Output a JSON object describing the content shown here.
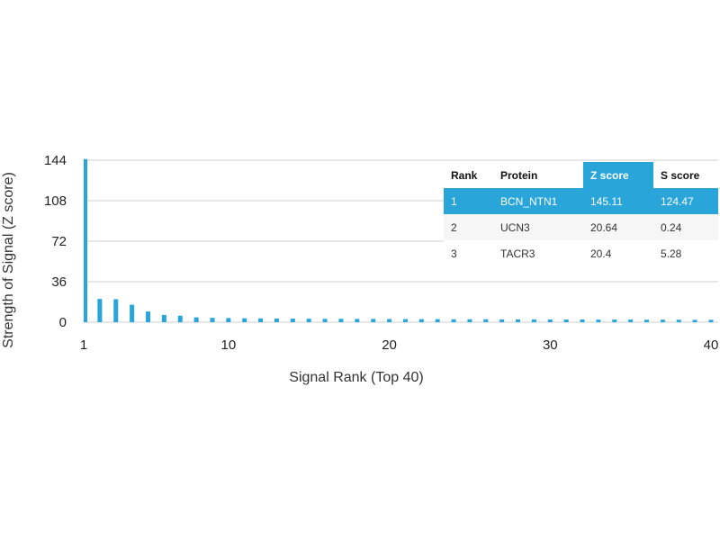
{
  "chart_data": {
    "type": "bar",
    "xlabel": "Signal Rank (Top 40)",
    "ylabel": "Strength of Signal (Z score)",
    "ylim": [
      0,
      144
    ],
    "xlim": [
      1,
      40
    ],
    "yticks": [
      "0",
      "36",
      "72",
      "108",
      "144"
    ],
    "xticks": [
      "1",
      "10",
      "20",
      "30",
      "40"
    ],
    "grid": true,
    "bar_color": "#29a5da",
    "x": [
      1,
      2,
      3,
      4,
      5,
      6,
      7,
      8,
      9,
      10,
      11,
      12,
      13,
      14,
      15,
      16,
      17,
      18,
      19,
      20,
      21,
      22,
      23,
      24,
      25,
      26,
      27,
      28,
      29,
      30,
      31,
      32,
      33,
      34,
      35,
      36,
      37,
      38,
      39,
      40
    ],
    "values": [
      145.11,
      20.64,
      20.4,
      15.5,
      9.5,
      6.5,
      5.8,
      4.3,
      3.9,
      3.7,
      3.5,
      3.4,
      3.3,
      3.2,
      3.1,
      3.0,
      3.0,
      2.9,
      2.9,
      2.8,
      2.8,
      2.7,
      2.7,
      2.6,
      2.6,
      2.6,
      2.5,
      2.5,
      2.5,
      2.4,
      2.4,
      2.4,
      2.3,
      2.3,
      2.3,
      2.2,
      2.2,
      2.2,
      2.1,
      2.1
    ]
  },
  "table": {
    "headers": [
      "Rank",
      "Protein",
      "Z score",
      "S score"
    ],
    "highlight_color": "#29a5da",
    "rows": [
      [
        "1",
        "BCN_NTN1",
        "145.11",
        "124.47"
      ],
      [
        "2",
        "UCN3",
        "20.64",
        "0.24"
      ],
      [
        "3",
        "TACR3",
        "20.4",
        "5.28"
      ]
    ]
  }
}
